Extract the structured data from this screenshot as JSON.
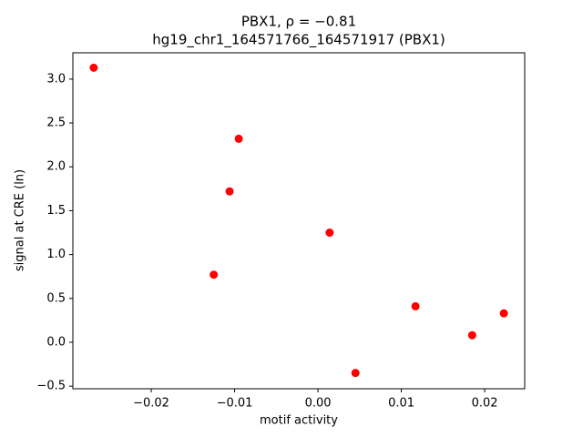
{
  "chart_data": {
    "type": "scatter",
    "title": "PBX1, ρ = −0.81",
    "subtitle": "hg19_chr1_164571766_164571917 (PBX1)",
    "x_label": "motif activity",
    "y_label": "signal at CRE (ln)",
    "color": "#ff0000",
    "x": [
      -0.0269,
      -0.0095,
      -0.0106,
      -0.0125,
      0.0014,
      0.0045,
      0.0117,
      0.0185,
      0.0223
    ],
    "values": [
      3.13,
      2.32,
      1.72,
      0.77,
      1.25,
      -0.35,
      0.41,
      0.08,
      0.33
    ],
    "xlim": [
      -0.0294,
      0.0248
    ],
    "ylim": [
      -0.53,
      3.3
    ],
    "xticks": [
      {
        "value": -0.02,
        "label": "−0.02"
      },
      {
        "value": -0.01,
        "label": "−0.01"
      },
      {
        "value": 0,
        "label": "0.00"
      },
      0.01,
      0.02
    ],
    "yticks": [
      {
        "value": -0.5,
        "label": "−0.5"
      },
      {
        "value": 0,
        "label": "0.0"
      },
      0.5,
      {
        "value": 1,
        "label": "1.0"
      },
      1.5,
      {
        "value": 2,
        "label": "2.0"
      },
      2.5,
      {
        "value": 3,
        "label": "3.0"
      }
    ]
  }
}
